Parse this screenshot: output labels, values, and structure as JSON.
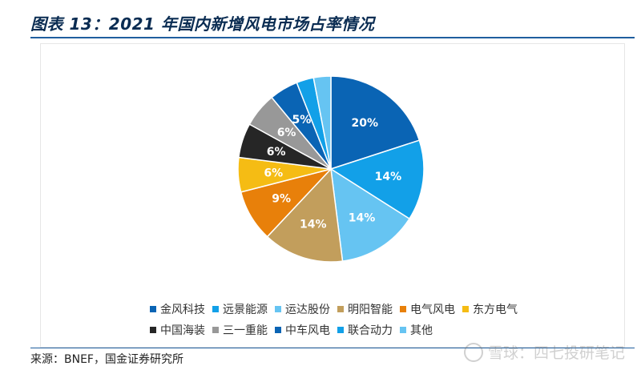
{
  "figure": {
    "title": "图表 13：2021 年国内新增风电市场占率情况",
    "source": "来源：BNEF，国金证券研究所",
    "watermark": "雪球：四七投研笔记"
  },
  "chart_data": {
    "type": "pie",
    "title": "",
    "legend_position": "bottom",
    "slices": [
      {
        "label": "金风科技",
        "value": 20,
        "display": "20%",
        "color": "#0a64b4"
      },
      {
        "label": "远景能源",
        "value": 14,
        "display": "14%",
        "color": "#12a0e8"
      },
      {
        "label": "运达股份",
        "value": 14,
        "display": "14%",
        "color": "#66c4f2"
      },
      {
        "label": "明阳智能",
        "value": 14,
        "display": "14%",
        "color": "#c29e5c"
      },
      {
        "label": "电气风电",
        "value": 9,
        "display": "9%",
        "color": "#e8800a"
      },
      {
        "label": "东方电气",
        "value": 6,
        "display": "6%",
        "color": "#f5bc14"
      },
      {
        "label": "中国海装",
        "value": 6,
        "display": "6%",
        "color": "#262626"
      },
      {
        "label": "三一重能",
        "value": 6,
        "display": "6%",
        "color": "#989898"
      },
      {
        "label": "中车风电",
        "value": 5,
        "display": "5%",
        "color": "#0a64b4"
      },
      {
        "label": "联合动力",
        "value": 3,
        "display": "",
        "color": "#12a0e8"
      },
      {
        "label": "其他",
        "value": 3,
        "display": "",
        "color": "#66c4f2"
      }
    ]
  }
}
